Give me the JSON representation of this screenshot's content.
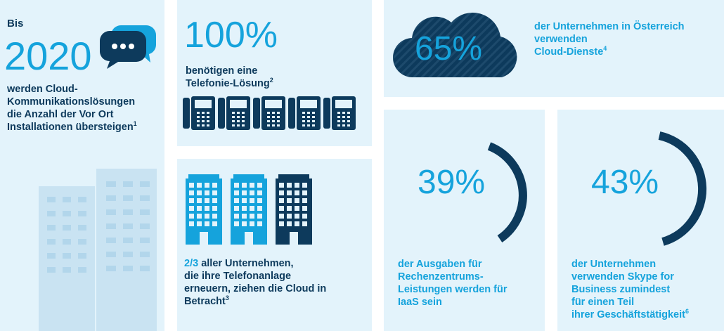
{
  "panel1": {
    "prefix": "Bis",
    "year": "2020",
    "text_lines": [
      "werden Cloud-",
      "Kommunikationslösungen",
      "die Anzahl der Vor Ort",
      "Installationen übersteigen"
    ],
    "footnote": "1"
  },
  "panel2": {
    "percent": "100%",
    "text_lines": [
      "benötigen eine",
      "Telefonie-Lösung"
    ],
    "footnote": "2"
  },
  "panel3": {
    "highlight": "2/3",
    "text_lines": [
      " aller Unternehmen,",
      "die ihre Telefonanlage",
      "erneuern, ziehen die Cloud in",
      "Betracht"
    ],
    "footnote": "3"
  },
  "panel4": {
    "percent": "65%",
    "text_lines": [
      "der Unternehmen in Österreich",
      "verwenden",
      "Cloud-Dienste"
    ],
    "footnote": "4"
  },
  "panel5": {
    "percent": "39%",
    "text_lines": [
      "der Ausgaben für",
      "Rechenzentrums-",
      "Leistungen werden für",
      "IaaS sein"
    ]
  },
  "panel6": {
    "percent": "43%",
    "text_lines": [
      "der Unternehmen",
      "verwenden Skype for",
      "Business zumindest",
      "für einen Teil",
      "ihrer Geschäftstätigkeit"
    ],
    "footnote": "6"
  },
  "colors": {
    "panel_bg": "#e3f3fb",
    "accent": "#15a3dc",
    "navy": "#0d3a5c",
    "light_building": "#c9e3f2"
  },
  "icons": [
    "chat-bubbles-icon",
    "desk-phone-icon",
    "office-building-icon",
    "cloud-icon",
    "arc-gauge-icon"
  ]
}
